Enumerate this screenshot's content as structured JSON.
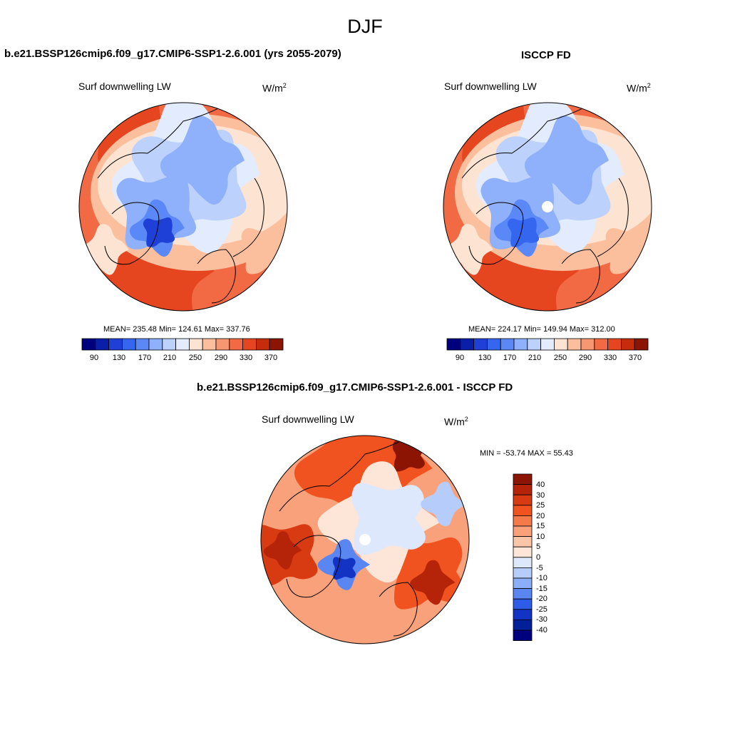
{
  "title": "DJF",
  "panels": [
    {
      "id": "model",
      "title": "b.e21.BSSP126cmip6.f09_g17.CMIP6-SSP1-2.6.001 (yrs 2055-2079)",
      "variable": "Surf downwelling LW",
      "units": "W/m",
      "units_sup": "2",
      "stats": "MEAN= 235.48  Min= 124.61  Max= 337.76",
      "colorbar_labels": [
        "90",
        "130",
        "170",
        "210",
        "250",
        "290",
        "330",
        "370"
      ]
    },
    {
      "id": "obs",
      "title": "ISCCP FD",
      "variable": "Surf downwelling LW",
      "units": "W/m",
      "units_sup": "2",
      "stats": "MEAN= 224.17  Min= 149.94  Max= 312.00",
      "colorbar_labels": [
        "90",
        "130",
        "170",
        "210",
        "250",
        "290",
        "330",
        "370"
      ]
    },
    {
      "id": "diff",
      "title": "b.e21.BSSP126cmip6.f09_g17.CMIP6-SSP1-2.6.001 - ISCCP FD",
      "variable": "Surf downwelling LW",
      "units": "W/m",
      "units_sup": "2",
      "stats": "MIN = -53.74 MAX =  55.43",
      "colorbar_labels": [
        "40",
        "30",
        "25",
        "20",
        "15",
        "10",
        "5",
        "0",
        "-5",
        "-10",
        "-15",
        "-20",
        "-25",
        "-30",
        "-40"
      ]
    }
  ],
  "colors": {
    "abs_scale": [
      "#00007f",
      "#0a1fa8",
      "#1f40d6",
      "#3566f0",
      "#5b88f7",
      "#8fb0fa",
      "#bcd2fc",
      "#e2ecfe",
      "#fde4d2",
      "#fbbf9e",
      "#f79772",
      "#f26a44",
      "#e5451f",
      "#c52c0b",
      "#8c1402"
    ],
    "diff_scale": [
      "#8c1402",
      "#b52408",
      "#d83a12",
      "#f0531f",
      "#f57a4a",
      "#f9a17b",
      "#fbc6a8",
      "#fde6d8",
      "#dde8fd",
      "#b6cdfb",
      "#8aaef8",
      "#5a86f2",
      "#2d5ce8",
      "#1333c4",
      "#021f9a",
      "#00007f"
    ]
  }
}
